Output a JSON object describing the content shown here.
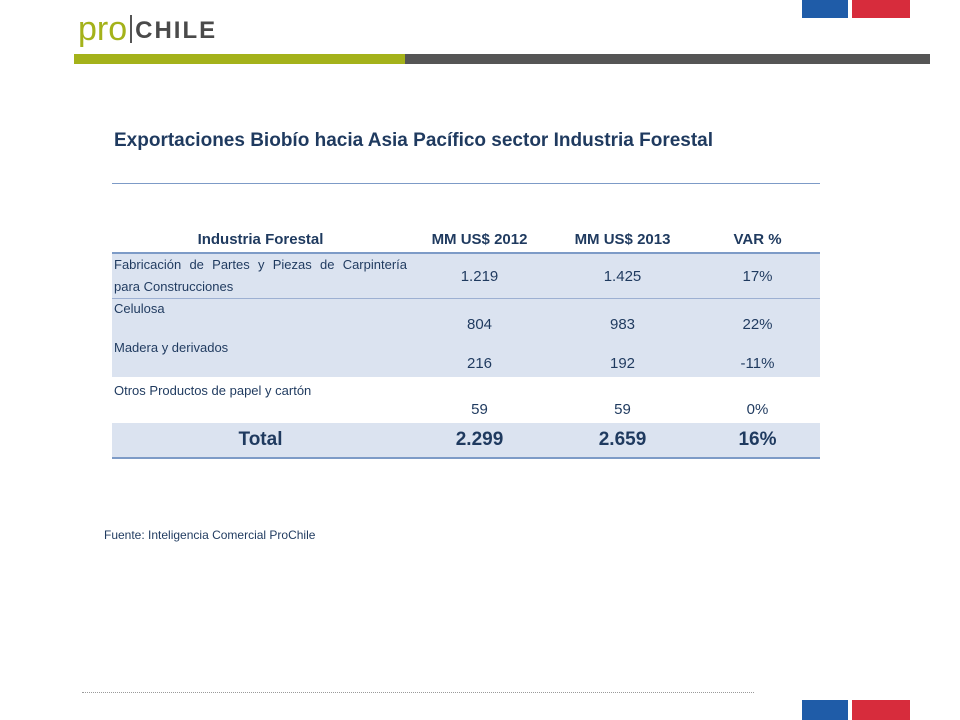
{
  "logo": {
    "pro": "pro",
    "chile": "CHILE"
  },
  "colors": {
    "brand_green": "#a4b21a",
    "bar_gray": "#555555",
    "flag_blue": "#1f5ca8",
    "flag_red": "#d72c3c",
    "text_blue": "#1f3a5f",
    "row_shade": "#dbe3f0"
  },
  "title": "Exportaciones Biobío hacia Asia Pacífico sector Industria Forestal",
  "table": {
    "headers": [
      "Industria Forestal",
      "MM US$ 2012",
      "MM US$ 2013",
      "VAR %"
    ],
    "rows": [
      {
        "name": "Fabricación de Partes y Piezas de Carpintería para Construcciones",
        "v2012": "1.219",
        "v2013": "1.425",
        "var": "17%"
      },
      {
        "name": "Celulosa",
        "v2012": "804",
        "v2013": "983",
        "var": "22%"
      },
      {
        "name": "Madera y derivados",
        "v2012": "216",
        "v2013": "192",
        "var": "-11%"
      },
      {
        "name": "Otros Productos de papel y cartón",
        "v2012": "59",
        "v2013": "59",
        "var": "0%"
      }
    ],
    "total": {
      "label": "Total",
      "v2012": "2.299",
      "v2013": "2.659",
      "var": "16%"
    }
  },
  "source": "Fuente: Inteligencia Comercial ProChile"
}
